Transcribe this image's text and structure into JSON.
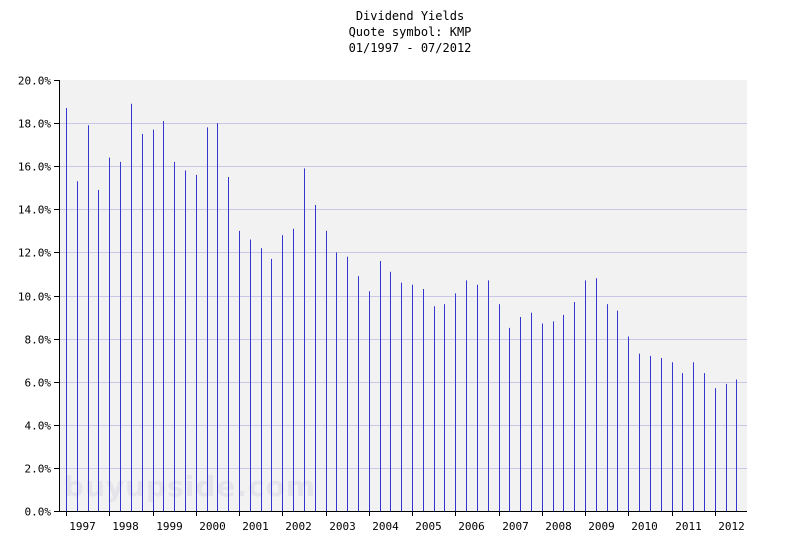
{
  "chart_data": {
    "type": "bar",
    "title": "Dividend Yields",
    "subtitle_lines": [
      "Quote symbol: KMP",
      "01/1997 - 07/2012"
    ],
    "watermark": "buyupside.com",
    "ylim": [
      0,
      20
    ],
    "y_ticks": [
      "0.0%",
      "2.0%",
      "4.0%",
      "6.0%",
      "8.0%",
      "10.0%",
      "12.0%",
      "14.0%",
      "16.0%",
      "18.0%",
      "20.0%"
    ],
    "x_labels": [
      "1997",
      "1998",
      "1999",
      "2000",
      "2001",
      "2002",
      "2003",
      "2004",
      "2005",
      "2006",
      "2007",
      "2008",
      "2009",
      "2010",
      "2011",
      "2012"
    ],
    "x_range": [
      1997.0,
      2012.5833
    ],
    "grid": true,
    "colors": {
      "bar": "#3535d0",
      "plot_bg": "#f2f2f2",
      "grid": "#c8c8e6"
    },
    "x": [
      1997.0,
      1997.25,
      1997.5,
      1997.75,
      1998.0,
      1998.25,
      1998.5,
      1998.75,
      1999.0,
      1999.25,
      1999.5,
      1999.75,
      2000.0,
      2000.25,
      2000.5,
      2000.75,
      2001.0,
      2001.25,
      2001.5,
      2001.75,
      2002.0,
      2002.25,
      2002.5,
      2002.75,
      2003.0,
      2003.25,
      2003.5,
      2003.75,
      2004.0,
      2004.25,
      2004.5,
      2004.75,
      2005.0,
      2005.25,
      2005.5,
      2005.75,
      2006.0,
      2006.25,
      2006.5,
      2006.75,
      2007.0,
      2007.25,
      2007.5,
      2007.75,
      2008.0,
      2008.25,
      2008.5,
      2008.75,
      2009.0,
      2009.25,
      2009.5,
      2009.75,
      2010.0,
      2010.25,
      2010.5,
      2010.75,
      2011.0,
      2011.25,
      2011.5,
      2011.75,
      2012.0,
      2012.25,
      2012.5
    ],
    "values": [
      18.7,
      15.3,
      17.9,
      14.9,
      16.4,
      16.2,
      18.9,
      17.5,
      17.7,
      18.1,
      16.2,
      15.8,
      15.6,
      17.8,
      18.0,
      15.5,
      13.0,
      12.6,
      12.2,
      11.7,
      12.8,
      13.1,
      15.9,
      14.2,
      13.0,
      12.0,
      11.8,
      10.9,
      10.2,
      11.6,
      11.1,
      10.6,
      10.5,
      10.3,
      9.5,
      9.6,
      10.1,
      10.7,
      10.5,
      10.7,
      9.6,
      8.5,
      9.0,
      9.2,
      8.7,
      8.8,
      9.1,
      9.7,
      10.7,
      10.8,
      9.6,
      9.3,
      8.1,
      7.3,
      7.2,
      7.1,
      6.9,
      6.4,
      6.9,
      6.4,
      5.7,
      5.9,
      6.1
    ]
  }
}
